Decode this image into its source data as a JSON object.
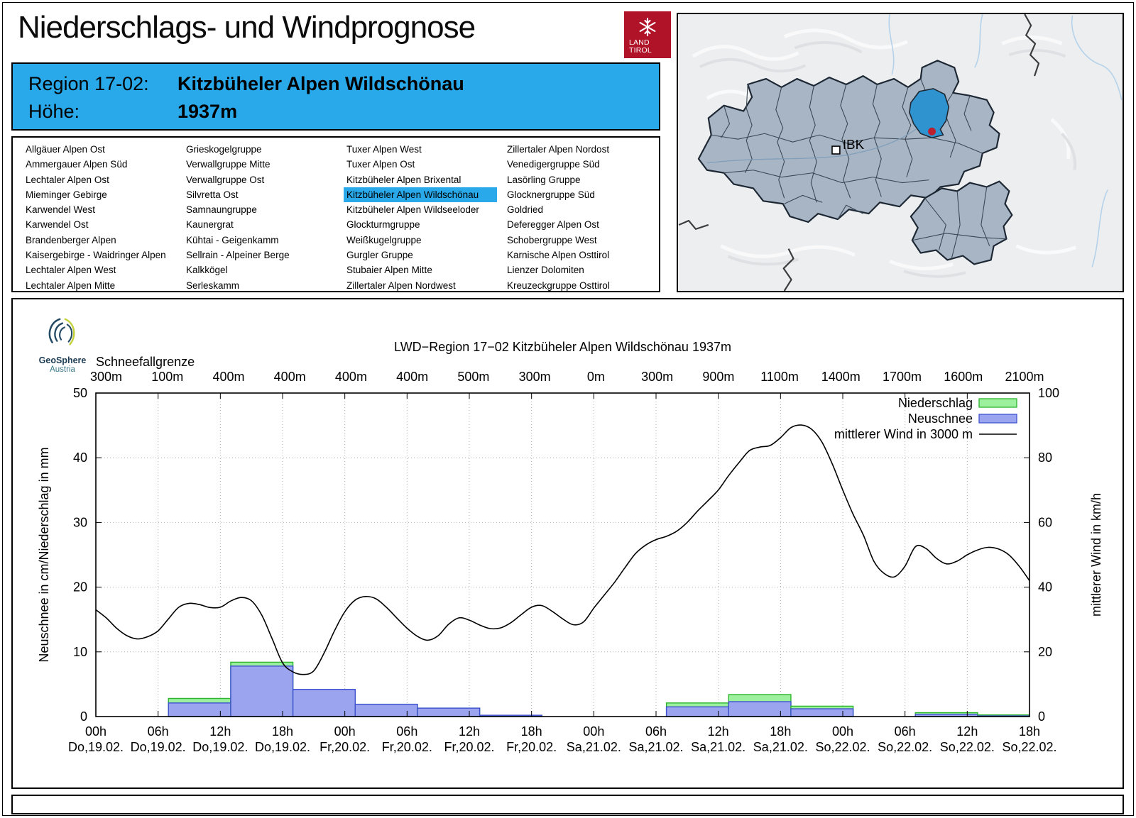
{
  "colors": {
    "accent": "#29a9e9",
    "logo_red": "#b01228",
    "map_region_fill": "#a7b5c5",
    "map_highlight": "#2e93cf",
    "map_marker_dot": "#bb2030",
    "precip_fill": "#9df09d",
    "precip_stroke": "#2db52d",
    "snow_fill": "#9ba4ef",
    "snow_stroke": "#3f51d0",
    "wind_stroke": "#000000"
  },
  "header": {
    "title": "Niederschlags- und Windprognose"
  },
  "brand": {
    "land_tirol_line1": "LAND",
    "land_tirol_line2": "TIROL"
  },
  "region_box": {
    "region_label": "Region 17-02:",
    "region_name": "Kitzbüheler Alpen Wildschönau",
    "elevation_label": "Höhe:",
    "elevation_value": "1937m"
  },
  "region_list": {
    "selected": "Kitzbüheler Alpen Wildschönau",
    "columns": [
      [
        "Allgäuer Alpen Ost",
        "Ammergauer Alpen Süd",
        "Lechtaler Alpen Ost",
        "Mieminger Gebirge",
        "Karwendel West",
        "Karwendel Ost",
        "Brandenberger Alpen",
        "Kaisergebirge - Waidringer Alpen",
        "Lechtaler Alpen West",
        "Lechtaler Alpen Mitte"
      ],
      [
        "Grieskogelgruppe",
        "Verwallgruppe Mitte",
        "Verwallgruppe Ost",
        "Silvretta Ost",
        "Samnaungruppe",
        "Kaunergrat",
        "Kühtai - Geigenkamm",
        "Sellrain - Alpeiner Berge",
        "Kalkkögel",
        "Serleskamm"
      ],
      [
        "Tuxer Alpen West",
        "Tuxer Alpen Ost",
        "Kitzbüheler Alpen Brixental",
        "Kitzbüheler Alpen Wildschönau",
        "Kitzbüheler Alpen Wildseeloder",
        "Glockturmgruppe",
        "Weißkugelgruppe",
        "Gurgler Gruppe",
        "Stubaier Alpen Mitte",
        "Zillertaler Alpen Nordwest"
      ],
      [
        "Zillertaler Alpen Nordost",
        "Venedigergruppe Süd",
        "Lasörling Gruppe",
        "Glocknergruppe Süd",
        "Goldried",
        "Deferegger Alpen Ost",
        "Schobergruppe West",
        "Karnische Alpen Osttirol",
        "Lienzer Dolomiten",
        "Kreuzeckgruppe Osttirol"
      ]
    ]
  },
  "map": {
    "marker_label": "IBK"
  },
  "geosphere": {
    "name": "GeoSphere",
    "country": "Austria"
  },
  "chart_data": {
    "type": "combo-bar-line",
    "title": "LWD−Region 17−02 Kitzbüheler Alpen Wildschönau 1937m",
    "snowline": {
      "label": "Schneefallgrenze",
      "values": [
        "300m",
        "100m",
        "400m",
        "400m",
        "400m",
        "400m",
        "500m",
        "300m",
        "0m",
        "300m",
        "900m",
        "1100m",
        "1400m",
        "1700m",
        "1600m",
        "2100m"
      ]
    },
    "y_left": {
      "label": "Neuschnee in cm/Niederschlag in mm",
      "min": 0,
      "max": 50,
      "ticks": [
        0,
        10,
        20,
        30,
        40,
        50
      ]
    },
    "y_right": {
      "label": "mittlerer Wind in km/h",
      "min": 0,
      "max": 100,
      "ticks": [
        0,
        20,
        40,
        60,
        80,
        100
      ]
    },
    "x_ticks": [
      {
        "hour": 0,
        "time": "00h",
        "date": "Do,19.02."
      },
      {
        "hour": 6,
        "time": "06h",
        "date": "Do,19.02."
      },
      {
        "hour": 12,
        "time": "12h",
        "date": "Do,19.02."
      },
      {
        "hour": 18,
        "time": "18h",
        "date": "Do,19.02."
      },
      {
        "hour": 24,
        "time": "00h",
        "date": "Fr,20.02."
      },
      {
        "hour": 30,
        "time": "06h",
        "date": "Fr,20.02."
      },
      {
        "hour": 36,
        "time": "12h",
        "date": "Fr,20.02."
      },
      {
        "hour": 42,
        "time": "18h",
        "date": "Fr,20.02."
      },
      {
        "hour": 48,
        "time": "00h",
        "date": "Sa,21.02."
      },
      {
        "hour": 54,
        "time": "06h",
        "date": "Sa,21.02."
      },
      {
        "hour": 60,
        "time": "12h",
        "date": "Sa,21.02."
      },
      {
        "hour": 66,
        "time": "18h",
        "date": "Sa,21.02."
      },
      {
        "hour": 72,
        "time": "00h",
        "date": "So,22.02."
      },
      {
        "hour": 78,
        "time": "06h",
        "date": "So,22.02."
      },
      {
        "hour": 84,
        "time": "12h",
        "date": "So,22.02."
      },
      {
        "hour": 90,
        "time": "18h",
        "date": "So,22.02."
      }
    ],
    "legend": [
      {
        "label": "Niederschlag",
        "type": "box",
        "fill": "#9df09d",
        "stroke": "#2db52d"
      },
      {
        "label": "Neuschnee",
        "type": "box",
        "fill": "#9ba4ef",
        "stroke": "#3f51d0"
      },
      {
        "label": "mittlerer Wind in 3000 m",
        "type": "line",
        "stroke": "#000000"
      }
    ],
    "bars": [
      {
        "start_h": 7,
        "end_h": 13,
        "niederschlag_mm": 2.8,
        "neuschnee_cm": 2.1
      },
      {
        "start_h": 13,
        "end_h": 19,
        "niederschlag_mm": 8.4,
        "neuschnee_cm": 7.8
      },
      {
        "start_h": 19,
        "end_h": 25,
        "niederschlag_mm": 4.2,
        "neuschnee_cm": 4.2
      },
      {
        "start_h": 25,
        "end_h": 31,
        "niederschlag_mm": 1.9,
        "neuschnee_cm": 1.9
      },
      {
        "start_h": 31,
        "end_h": 37,
        "niederschlag_mm": 1.3,
        "neuschnee_cm": 1.3
      },
      {
        "start_h": 37,
        "end_h": 43,
        "niederschlag_mm": 0.2,
        "neuschnee_cm": 0.2
      },
      {
        "start_h": 55,
        "end_h": 61,
        "niederschlag_mm": 2.1,
        "neuschnee_cm": 1.5
      },
      {
        "start_h": 61,
        "end_h": 67,
        "niederschlag_mm": 3.4,
        "neuschnee_cm": 2.3
      },
      {
        "start_h": 67,
        "end_h": 73,
        "niederschlag_mm": 1.6,
        "neuschnee_cm": 1.2
      },
      {
        "start_h": 79,
        "end_h": 85,
        "niederschlag_mm": 0.6,
        "neuschnee_cm": 0.35
      },
      {
        "start_h": 85,
        "end_h": 90,
        "niederschlag_mm": 0.25,
        "neuschnee_cm": 0.1
      }
    ],
    "wind_points_h_kmh": [
      [
        0,
        33
      ],
      [
        1,
        30.5
      ],
      [
        2,
        27.3
      ],
      [
        3,
        25
      ],
      [
        4,
        24
      ],
      [
        5,
        24.7
      ],
      [
        6,
        26.5
      ],
      [
        7,
        30.2
      ],
      [
        8,
        33.8
      ],
      [
        9,
        35
      ],
      [
        10,
        34.6
      ],
      [
        11,
        33.7
      ],
      [
        12,
        33.8
      ],
      [
        13,
        35.7
      ],
      [
        14,
        36.8
      ],
      [
        15,
        35.8
      ],
      [
        16,
        31.3
      ],
      [
        17,
        24
      ],
      [
        18,
        16.6
      ],
      [
        19,
        13.8
      ],
      [
        20,
        13
      ],
      [
        21,
        14.1
      ],
      [
        22,
        19.6
      ],
      [
        23,
        26.5
      ],
      [
        24,
        32.4
      ],
      [
        25,
        36
      ],
      [
        26,
        37.1
      ],
      [
        27,
        36.4
      ],
      [
        28,
        33.8
      ],
      [
        29,
        30.5
      ],
      [
        30,
        27.3
      ],
      [
        31,
        24.8
      ],
      [
        32,
        23.6
      ],
      [
        33,
        25
      ],
      [
        34,
        28.5
      ],
      [
        35,
        30.5
      ],
      [
        36,
        29.8
      ],
      [
        37,
        28.3
      ],
      [
        38,
        27.2
      ],
      [
        39,
        27.4
      ],
      [
        40,
        29
      ],
      [
        41,
        31.5
      ],
      [
        42,
        33.8
      ],
      [
        43,
        34.3
      ],
      [
        44,
        32.5
      ],
      [
        45,
        30.2
      ],
      [
        46,
        28.4
      ],
      [
        47,
        29.2
      ],
      [
        48,
        33.5
      ],
      [
        49,
        37.5
      ],
      [
        50,
        41.5
      ],
      [
        51,
        46
      ],
      [
        52,
        50.3
      ],
      [
        53,
        53
      ],
      [
        54,
        54.7
      ],
      [
        55,
        55.7
      ],
      [
        56,
        57.3
      ],
      [
        57,
        60
      ],
      [
        58,
        63.5
      ],
      [
        59,
        66.7
      ],
      [
        60,
        70
      ],
      [
        61,
        74.5
      ],
      [
        62,
        78.5
      ],
      [
        63,
        82.2
      ],
      [
        64,
        83.3
      ],
      [
        65,
        83.8
      ],
      [
        66,
        86.2
      ],
      [
        67,
        89.3
      ],
      [
        68,
        90.1
      ],
      [
        69,
        88.8
      ],
      [
        70,
        84.8
      ],
      [
        71,
        78
      ],
      [
        72,
        70
      ],
      [
        73,
        62.5
      ],
      [
        74,
        56
      ],
      [
        75,
        48
      ],
      [
        76,
        44.2
      ],
      [
        77,
        43.2
      ],
      [
        78,
        46.5
      ],
      [
        79,
        52.5
      ],
      [
        80,
        52
      ],
      [
        81,
        49
      ],
      [
        82,
        47.2
      ],
      [
        83,
        48
      ],
      [
        84,
        50
      ],
      [
        85,
        51.5
      ],
      [
        86,
        52.3
      ],
      [
        87,
        51.8
      ],
      [
        88,
        50
      ],
      [
        89,
        46.5
      ],
      [
        90,
        42
      ]
    ]
  }
}
